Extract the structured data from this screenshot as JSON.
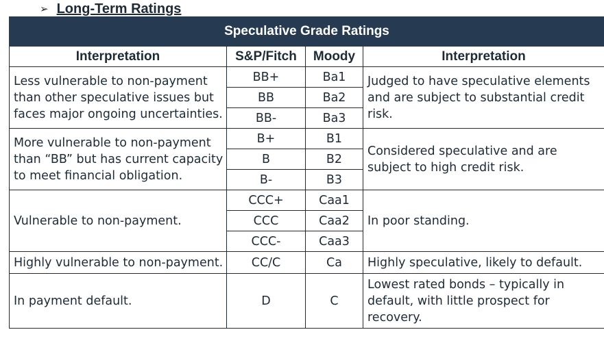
{
  "heading": {
    "bullet": "➢",
    "title": "Long-Term Ratings"
  },
  "table": {
    "banner": "Speculative Grade Ratings",
    "headers": [
      "Interpretation",
      "S&P/Fitch",
      "Moody",
      "Interpretation"
    ],
    "groups": [
      {
        "left": "Less vulnerable to non-payment than other speculative issues but faces major ongoing uncertainties.",
        "right": "Judged to have speculative elements and are subject to substantial credit risk.",
        "rows": [
          [
            "BB+",
            "Ba1"
          ],
          [
            "BB",
            "Ba2"
          ],
          [
            "BB-",
            "Ba3"
          ]
        ]
      },
      {
        "left": "More vulnerable to non-payment than “BB” but has current capacity to meet financial obligation.",
        "right": "Considered speculative and are subject to high credit risk.",
        "rows": [
          [
            "B+",
            "B1"
          ],
          [
            "B",
            "B2"
          ],
          [
            "B-",
            "B3"
          ]
        ]
      },
      {
        "left": "Vulnerable to non-payment.",
        "right": "In poor standing.",
        "rows": [
          [
            "CCC+",
            "Caa1"
          ],
          [
            "CCC",
            "Caa2"
          ],
          [
            "CCC-",
            "Caa3"
          ]
        ]
      },
      {
        "left": "Highly vulnerable to non-payment.",
        "right": "Highly speculative, likely to default.",
        "rows": [
          [
            "CC/C",
            "Ca"
          ]
        ]
      },
      {
        "left": "In payment default.",
        "right": "Lowest rated bonds – typically in default, with little prospect for recovery.",
        "rows": [
          [
            "D",
            "C"
          ]
        ]
      }
    ]
  }
}
